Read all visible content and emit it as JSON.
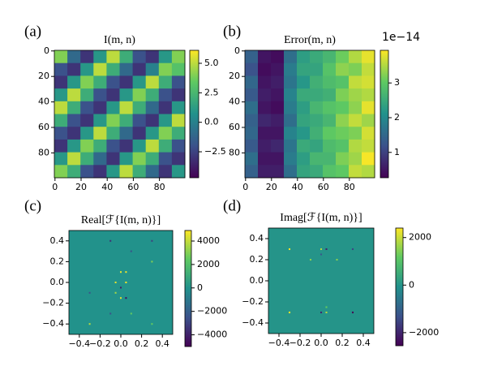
{
  "chart_data": [
    {
      "type": "heatmap",
      "panel_label": "(a)",
      "title": "I(m, n)",
      "colormap": "viridis",
      "xlim": [
        -0.5,
        99.5
      ],
      "ylim": [
        99.5,
        -0.5
      ],
      "xticks": [
        0,
        20,
        40,
        60,
        80
      ],
      "yticks": [
        0,
        20,
        40,
        60,
        80
      ],
      "clim": [
        -4.7,
        6.1
      ],
      "cticks": [
        {
          "value": -2.5,
          "label": "−2.5"
        },
        {
          "value": 0,
          "label": "0.0"
        },
        {
          "value": 2.5,
          "label": "2.5"
        },
        {
          "value": 5,
          "label": "5.0"
        }
      ],
      "z": [
        [
          4,
          -1,
          -3,
          1,
          5,
          2,
          -2,
          -3,
          1,
          4
        ],
        [
          -2,
          -3,
          1,
          5,
          2,
          -1,
          -3,
          0,
          4,
          3
        ],
        [
          -3,
          1,
          4,
          2,
          -2,
          -3,
          1,
          5,
          2,
          -2
        ],
        [
          1,
          5,
          2,
          -2,
          -3,
          1,
          4,
          2,
          -2,
          -3
        ],
        [
          5,
          2,
          -2,
          -3,
          1,
          5,
          2,
          -1,
          -3,
          1
        ],
        [
          2,
          -2,
          -3,
          1,
          4,
          2,
          -2,
          -3,
          1,
          5
        ],
        [
          -2,
          -3,
          1,
          5,
          2,
          -1,
          -3,
          1,
          4,
          2
        ],
        [
          -3,
          1,
          4,
          2,
          -2,
          -3,
          1,
          5,
          2,
          -2
        ],
        [
          1,
          5,
          2,
          -1,
          -3,
          1,
          4,
          2,
          -2,
          -3
        ],
        [
          4,
          2,
          -2,
          -3,
          1,
          5,
          2,
          -1,
          -3,
          1
        ]
      ]
    },
    {
      "type": "heatmap",
      "panel_label": "(b)",
      "title": "Error(m, n)",
      "colormap": "viridis",
      "xlim": [
        -0.5,
        99.5
      ],
      "ylim": [
        99.5,
        -0.5
      ],
      "xticks": [
        0,
        20,
        40,
        60,
        80
      ],
      "yticks": [
        0,
        20,
        40,
        60,
        80
      ],
      "clim": [
        0.27,
        3.94
      ],
      "cticks": [
        1,
        2,
        3
      ],
      "colorbar_offset": "1e−14",
      "z": [
        [
          1.4,
          0.5,
          0.4,
          1.6,
          2.3,
          2.5,
          2.7,
          3.1,
          3.5,
          3.8
        ],
        [
          1.2,
          0.4,
          0.5,
          1.8,
          2.4,
          2.4,
          2.9,
          3.3,
          3.2,
          3.6
        ],
        [
          1.5,
          0.5,
          0.6,
          1.7,
          2.2,
          2.6,
          2.8,
          2.9,
          3.6,
          3.7
        ],
        [
          1.3,
          0.6,
          0.5,
          1.9,
          2.5,
          2.5,
          2.6,
          3.2,
          3.4,
          3.5
        ],
        [
          1.6,
          0.5,
          0.4,
          1.8,
          2.3,
          2.7,
          2.9,
          3.0,
          3.3,
          3.8
        ],
        [
          1.4,
          0.7,
          0.6,
          1.6,
          2.4,
          2.5,
          2.7,
          3.3,
          3.6,
          3.4
        ],
        [
          1.5,
          0.5,
          0.5,
          1.9,
          2.2,
          2.6,
          3.0,
          3.1,
          3.2,
          3.7
        ],
        [
          1.3,
          0.6,
          0.7,
          1.7,
          2.5,
          2.4,
          2.8,
          2.9,
          3.5,
          3.6
        ],
        [
          1.6,
          0.5,
          0.5,
          1.8,
          2.3,
          2.7,
          2.7,
          3.2,
          3.4,
          3.9
        ],
        [
          1.4,
          0.6,
          0.6,
          1.6,
          2.4,
          2.5,
          2.9,
          3.0,
          3.6,
          3.5
        ]
      ]
    },
    {
      "type": "sparse_heatmap",
      "panel_label": "(c)",
      "title": "Real[ℱ{I(m, n)}]",
      "colormap": "viridis",
      "xlim": [
        -0.5,
        0.5
      ],
      "ylim": [
        -0.5,
        0.5
      ],
      "xticks": [
        {
          "value": -0.4,
          "label": "−0.4"
        },
        {
          "value": -0.2,
          "label": "−0.2"
        },
        {
          "value": 0,
          "label": "0.0"
        },
        {
          "value": 0.2,
          "label": "0.2"
        },
        {
          "value": 0.4,
          "label": "0.4"
        }
      ],
      "yticks": [
        {
          "value": -0.4,
          "label": "−0.4"
        },
        {
          "value": -0.2,
          "label": "−0.2"
        },
        {
          "value": 0,
          "label": "0.0"
        },
        {
          "value": 0.2,
          "label": "0.2"
        },
        {
          "value": 0.4,
          "label": "0.4"
        }
      ],
      "clim": [
        -5000,
        4900
      ],
      "cticks": [
        {
          "value": -4000,
          "label": "−4000"
        },
        {
          "value": -2000,
          "label": "−2000"
        },
        0,
        2000,
        4000
      ],
      "background_value": 0,
      "x": [
        0.0,
        0.05,
        0.05,
        -0.05,
        -0.05,
        0.0,
        0.05,
        0.0,
        -0.3,
        0.3,
        0.3,
        -0.1,
        0.3,
        -0.3,
        0.1,
        -0.1,
        0.1
      ],
      "y": [
        0.1,
        0.1,
        0.0,
        0.0,
        -0.1,
        -0.05,
        -0.15,
        -0.15,
        -0.1,
        0.4,
        -0.4,
        0.4,
        0.2,
        -0.4,
        0.3,
        -0.3,
        -0.3
      ],
      "values": [
        4500,
        4700,
        4800,
        4500,
        3500,
        -4000,
        -4500,
        4400,
        -2500,
        -3000,
        2500,
        -3500,
        3000,
        3800,
        -2500,
        -2500,
        2500
      ]
    },
    {
      "type": "sparse_heatmap",
      "panel_label": "(d)",
      "title": "Imag[ℱ{I(m, n)}]",
      "colormap": "viridis",
      "xlim": [
        -0.5,
        0.5
      ],
      "ylim": [
        -0.5,
        0.5
      ],
      "xticks": [
        {
          "value": -0.4,
          "label": "−0.4"
        },
        {
          "value": -0.2,
          "label": "−0.2"
        },
        {
          "value": 0,
          "label": "0.0"
        },
        {
          "value": 0.2,
          "label": "0.2"
        },
        {
          "value": 0.4,
          "label": "0.4"
        }
      ],
      "yticks": [
        {
          "value": -0.4,
          "label": "−0.4"
        },
        {
          "value": -0.2,
          "label": "−0.2"
        },
        {
          "value": 0,
          "label": "0.0"
        },
        {
          "value": 0.2,
          "label": "0.2"
        },
        {
          "value": 0.4,
          "label": "0.4"
        }
      ],
      "clim": [
        -2550,
        2400
      ],
      "cticks": [
        {
          "value": -2000,
          "label": "−2000"
        },
        0,
        2000
      ],
      "background_value": 0,
      "x": [
        -0.3,
        -0.3,
        0.3,
        0.3,
        0.0,
        0.05,
        0.0,
        0.05,
        -0.1,
        0.15,
        0.0,
        0.05
      ],
      "y": [
        0.3,
        -0.3,
        -0.3,
        0.3,
        0.3,
        0.3,
        -0.3,
        -0.3,
        0.2,
        0.2,
        0.25,
        -0.25
      ],
      "values": [
        2300,
        2300,
        -2500,
        -1500,
        1800,
        -2000,
        -2000,
        1800,
        1500,
        1500,
        -1200,
        1200
      ]
    }
  ]
}
